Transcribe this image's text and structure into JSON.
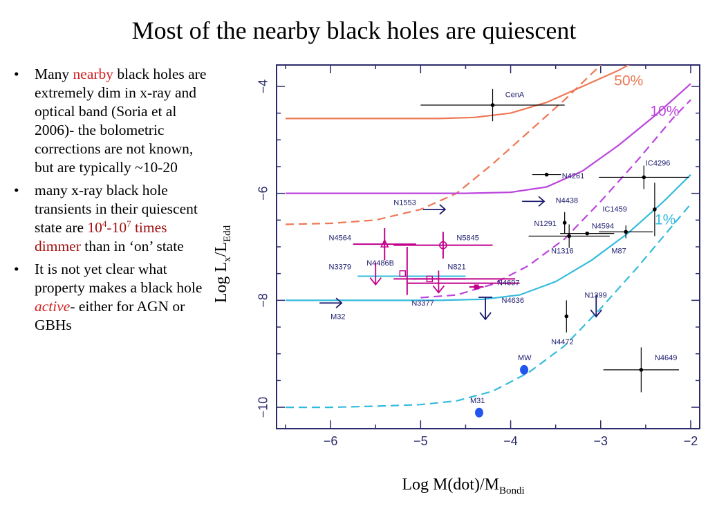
{
  "slide": {
    "title": "Most of the nearby black holes are quiescent",
    "bullets": [
      {
        "segments": [
          {
            "text": "Many ",
            "style": "plain"
          },
          {
            "text": "nearby",
            "style": "red"
          },
          {
            "text": " black holes are extremely dim in x-ray and optical band (Soria et al 2006)- the bolometric corrections are not known, but are typically ~10-20",
            "style": "plain"
          }
        ]
      },
      {
        "segments": [
          {
            "text": "many x-ray black hole transients in their quiescent state are ",
            "style": "plain"
          },
          {
            "text": "10",
            "style": "darkred"
          },
          {
            "text": "4",
            "style": "darkred-sup"
          },
          {
            "text": "-10",
            "style": "darkred"
          },
          {
            "text": "7",
            "style": "darkred-sup"
          },
          {
            "text": " times dimmer",
            "style": "darkred"
          },
          {
            "text": " than in ‘on’ state",
            "style": "plain"
          }
        ]
      },
      {
        "segments": [
          {
            "text": "It is not yet clear what property makes a black hole ",
            "style": "plain"
          },
          {
            "text": "active",
            "style": "red-italic"
          },
          {
            "text": "- either for AGN or GBHs",
            "style": "plain"
          }
        ]
      }
    ]
  },
  "axis_labels": {
    "y": {
      "main": "Log L",
      "sub1": "x",
      "mid": "/L",
      "sub2": "Edd"
    },
    "x": {
      "main": "Log M(dot)/M",
      "sub": "Bondi"
    }
  },
  "colors": {
    "frame": "#2a2a6a",
    "tick_label": "#2a2a6a",
    "black_points": "#000000",
    "blue_points": "#1a1a6e",
    "magenta_points": "#c0008a",
    "mw_m31": "#2255ee"
  },
  "chart_data": {
    "type": "scatter",
    "xlim": [
      -6.6,
      -1.9
    ],
    "ylim": [
      -10.4,
      -3.6
    ],
    "x_ticks": [
      -6,
      -5,
      -4,
      -3,
      -2
    ],
    "y_ticks": [
      -4,
      -6,
      -8,
      -10
    ],
    "x_tick_labels": [
      "−6",
      "−5",
      "−4",
      "−3",
      "−2"
    ],
    "y_tick_labels": [
      "−4",
      "−6",
      "−8",
      "−10"
    ],
    "curves": [
      {
        "label": "50%",
        "color": "#ee7755",
        "solid": [
          [
            -6.5,
            -4.6
          ],
          [
            -5.5,
            -4.6
          ],
          [
            -4.8,
            -4.6
          ],
          [
            -4.4,
            -4.58
          ],
          [
            -4.0,
            -4.5
          ],
          [
            -3.6,
            -4.3
          ],
          [
            -3.2,
            -4.0
          ],
          [
            -2.8,
            -3.7
          ],
          [
            -2.5,
            -3.42
          ]
        ],
        "dashed": [
          [
            -6.5,
            -6.58
          ],
          [
            -6.0,
            -6.56
          ],
          [
            -5.5,
            -6.5
          ],
          [
            -5.0,
            -6.3
          ],
          [
            -4.6,
            -6.0
          ],
          [
            -4.2,
            -5.45
          ],
          [
            -3.8,
            -4.85
          ],
          [
            -3.4,
            -4.25
          ],
          [
            -3.0,
            -3.6
          ],
          [
            -2.8,
            -3.3
          ]
        ],
        "label_pos": [
          -2.85,
          -3.98
        ]
      },
      {
        "label": "10%",
        "color": "#bb44dd",
        "solid": [
          [
            -6.5,
            -6.0
          ],
          [
            -5.5,
            -6.0
          ],
          [
            -4.5,
            -6.0
          ],
          [
            -4.0,
            -5.98
          ],
          [
            -3.6,
            -5.88
          ],
          [
            -3.2,
            -5.58
          ],
          [
            -2.8,
            -5.1
          ],
          [
            -2.4,
            -4.55
          ],
          [
            -2.0,
            -3.95
          ]
        ],
        "dashed": [
          [
            -5.0,
            -7.95
          ],
          [
            -4.6,
            -7.9
          ],
          [
            -4.2,
            -7.7
          ],
          [
            -3.8,
            -7.35
          ],
          [
            -3.4,
            -6.85
          ],
          [
            -3.0,
            -6.15
          ],
          [
            -2.6,
            -5.4
          ],
          [
            -2.2,
            -4.6
          ],
          [
            -2.0,
            -4.25
          ]
        ],
        "label_pos": [
          -2.45,
          -4.55
        ]
      },
      {
        "label": "1%",
        "color": "#33bbdd",
        "solid": [
          [
            -6.5,
            -8.0
          ],
          [
            -5.5,
            -8.0
          ],
          [
            -4.8,
            -8.0
          ],
          [
            -4.3,
            -7.98
          ],
          [
            -3.9,
            -7.9
          ],
          [
            -3.5,
            -7.65
          ],
          [
            -3.1,
            -7.25
          ],
          [
            -2.7,
            -6.75
          ],
          [
            -2.3,
            -6.15
          ],
          [
            -2.0,
            -5.65
          ]
        ],
        "dashed": [
          [
            -6.5,
            -10.0
          ],
          [
            -6.0,
            -10.0
          ],
          [
            -5.5,
            -9.98
          ],
          [
            -5.0,
            -9.95
          ],
          [
            -4.6,
            -9.88
          ],
          [
            -4.2,
            -9.7
          ],
          [
            -3.8,
            -9.35
          ],
          [
            -3.4,
            -8.85
          ],
          [
            -3.0,
            -8.15
          ],
          [
            -2.6,
            -7.4
          ],
          [
            -2.3,
            -6.8
          ],
          [
            -2.0,
            -6.2
          ]
        ],
        "label_pos": [
          -2.4,
          -6.58
        ]
      }
    ],
    "points": [
      {
        "name": "CenA",
        "x": -4.2,
        "y": -4.35,
        "xerr": 0.8,
        "yerr": 0.3,
        "color": "#000000",
        "marker": "dot",
        "label_pos": [
          -4.06,
          -4.2
        ]
      },
      {
        "name": "N4261",
        "x": -3.6,
        "y": -5.65,
        "xerr": 0.16,
        "yerr": 0.0,
        "color": "#000000",
        "marker": "dot",
        "label_pos": [
          -3.43,
          -5.72
        ]
      },
      {
        "name": "IC4296",
        "x": -2.52,
        "y": -5.7,
        "xerr": 0.5,
        "yerr": 0.22,
        "color": "#000000",
        "marker": "dot",
        "label_pos": [
          -2.5,
          -5.48
        ]
      },
      {
        "name": "IC1459",
        "x": -2.4,
        "y": -6.3,
        "xerr": 0.0,
        "yerr": 0.5,
        "color": "#000000",
        "marker": "dot",
        "label_pos": [
          -2.98,
          -6.34
        ]
      },
      {
        "name": "N1291",
        "x": -3.4,
        "y": -6.55,
        "xerr": 0.0,
        "yerr": 0.2,
        "color": "#000000",
        "marker": "dot",
        "label_pos": [
          -3.74,
          -6.61
        ]
      },
      {
        "name": "N4594",
        "x": -3.15,
        "y": -6.75,
        "xerr": 0.3,
        "yerr": 0.0,
        "color": "#000000",
        "marker": "dot",
        "label_pos": [
          -3.1,
          -6.66
        ]
      },
      {
        "name": "N1316",
        "x": -3.35,
        "y": -6.8,
        "xerr": 0.45,
        "yerr": 0.22,
        "color": "#000000",
        "marker": "dot",
        "label_pos": [
          -3.55,
          -7.12
        ]
      },
      {
        "name": "M87",
        "x": -2.72,
        "y": -6.72,
        "xerr": 0.3,
        "yerr": 0.12,
        "color": "#000000",
        "marker": "dot",
        "label_pos": [
          -2.88,
          -7.12
        ]
      },
      {
        "name": "N4472",
        "x": -3.38,
        "y": -8.3,
        "xerr": 0.0,
        "yerr": 0.3,
        "color": "#000000",
        "marker": "dot",
        "label_pos": [
          -3.55,
          -8.82
        ]
      },
      {
        "name": "N4649",
        "x": -2.55,
        "y": -9.3,
        "xerr": 0.42,
        "yerr": 0.42,
        "color": "#000000",
        "marker": "dot",
        "label_pos": [
          -2.4,
          -9.12
        ]
      },
      {
        "name": "N4564",
        "x": -5.4,
        "y": -6.95,
        "xerr": 0.35,
        "yerr": 0.3,
        "color": "#c0008a",
        "marker": "open-triangle",
        "label_pos": [
          -6.02,
          -6.88
        ]
      },
      {
        "name": "N5845",
        "x": -4.75,
        "y": -6.97,
        "xerr": 0.55,
        "yerr": 0.25,
        "color": "#c0008a",
        "marker": "open-circle",
        "label_pos": [
          -4.6,
          -6.88
        ]
      },
      {
        "name": "N4486B",
        "x": -5.2,
        "y": -7.5,
        "xerr": 0.0,
        "yerr": 0.0,
        "color": "#c0008a",
        "marker": "open-square",
        "label_pos": [
          -5.6,
          -7.35
        ]
      },
      {
        "name": "N821",
        "x": -4.9,
        "y": -7.6,
        "xerr": 0.4,
        "yerr": 0.0,
        "color": "#c0008a",
        "marker": "open-square",
        "label_pos": [
          -4.7,
          -7.42
        ]
      },
      {
        "name": "N4697",
        "x": -4.38,
        "y": -7.75,
        "xerr": 0.08,
        "yerr": 0.0,
        "color": "#c0008a",
        "marker": "filled-square",
        "label_pos": [
          -4.15,
          -7.72
        ]
      },
      {
        "name": "MW",
        "x": -3.85,
        "y": -9.3,
        "xerr": 0.0,
        "yerr": 0.0,
        "color": "#2255ee",
        "marker": "big-dot",
        "label_pos": [
          -3.92,
          -9.12
        ]
      },
      {
        "name": "M31",
        "x": -4.35,
        "y": -10.1,
        "xerr": 0.0,
        "yerr": 0.0,
        "color": "#2255ee",
        "marker": "big-dot",
        "label_pos": [
          -4.45,
          -9.92
        ]
      }
    ],
    "limits": [
      {
        "name": "N1553",
        "x": -4.85,
        "y": -6.3,
        "dir": "right",
        "color": "#1a1a6e",
        "label_pos": [
          -5.3,
          -6.22
        ]
      },
      {
        "name": "N4438",
        "x": -3.75,
        "y": -6.15,
        "dir": "right",
        "color": "#1a1a6e",
        "label_pos": [
          -3.5,
          -6.18
        ]
      },
      {
        "name": "M32",
        "x": -6.0,
        "y": -8.05,
        "dir": "right",
        "color": "#1a1a6e",
        "label_pos": [
          -6.0,
          -8.35
        ]
      },
      {
        "name": "N4636",
        "x": -4.28,
        "y": -8.15,
        "dir": "down",
        "color": "#1a1a6e",
        "label_pos": [
          -4.1,
          -8.05
        ]
      },
      {
        "name": "N1399",
        "x": -3.05,
        "y": -8.1,
        "dir": "down",
        "color": "#1a1a6e",
        "label_pos": [
          -3.18,
          -7.95
        ]
      },
      {
        "name": "N3379",
        "x": -5.5,
        "y": -7.5,
        "dir": "down",
        "color": "#c0008a",
        "label_pos": [
          -6.02,
          -7.42
        ]
      },
      {
        "name": "N3377",
        "x": -4.8,
        "y": -7.65,
        "dir": "down",
        "color": "#c0008a",
        "label_pos": [
          -5.1,
          -8.1
        ]
      }
    ],
    "limit_bars": [
      {
        "x1": -5.7,
        "x2": -4.5,
        "y": -7.55,
        "color": "#33bbdd"
      },
      {
        "x1": -5.1,
        "x2": -3.95,
        "y": -7.6,
        "color": "#c0008a"
      },
      {
        "x1": -5.15,
        "x2": -3.9,
        "y": -7.68,
        "color": "#c0008a"
      },
      {
        "x1": -5.15,
        "x2": -5.15,
        "y1": -7.9,
        "y2": -7.0,
        "color": "#c0008a"
      }
    ]
  }
}
